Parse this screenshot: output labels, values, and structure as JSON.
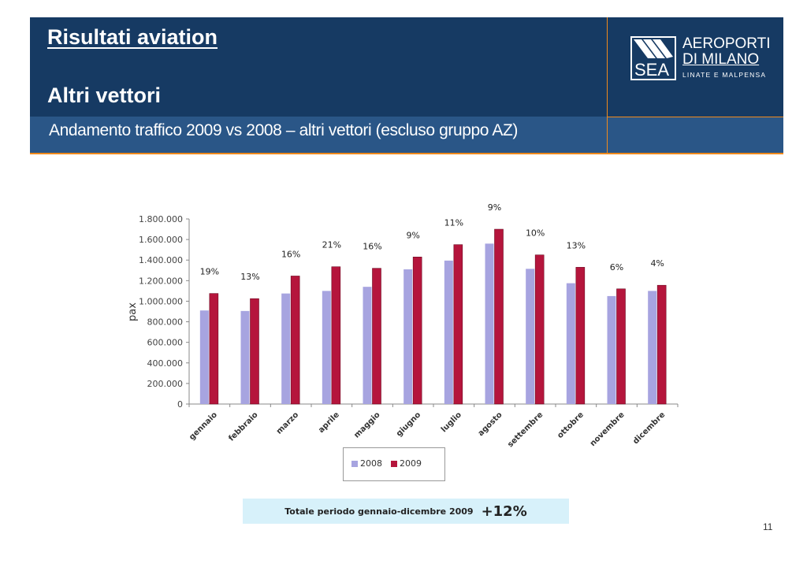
{
  "header": {
    "title": "Risultati aviation",
    "subtitle": "Altri vettori",
    "band_text": "Andamento traffico 2009 vs 2008 – altri vettori (escluso gruppo AZ)"
  },
  "logo": {
    "mark_text": "SEA",
    "brand_line1": "AEROPORTI",
    "brand_line2": "DI MILANO",
    "tagline": "LINATE E MALPENSA"
  },
  "chart_data": {
    "type": "bar",
    "ylabel": "pax",
    "xlabel": "",
    "ylim": [
      0,
      1800000
    ],
    "ytick_step": 200000,
    "ytick_labels": [
      "0",
      "200.000",
      "400.000",
      "600.000",
      "800.000",
      "1.000.000",
      "1.200.000",
      "1.400.000",
      "1.600.000",
      "1.800.000"
    ],
    "categories": [
      "gennaio",
      "febbraio",
      "marzo",
      "aprile",
      "maggio",
      "giugno",
      "luglio",
      "agosto",
      "settembre",
      "ottobre",
      "novembre",
      "dicembre"
    ],
    "series": [
      {
        "name": "2008",
        "color": "#a7a4e0",
        "values": [
          910000,
          905000,
          1075000,
          1100000,
          1140000,
          1310000,
          1395000,
          1560000,
          1315000,
          1175000,
          1050000,
          1100000
        ]
      },
      {
        "name": "2009",
        "color": "#b5153c",
        "values": [
          1075000,
          1025000,
          1245000,
          1335000,
          1320000,
          1430000,
          1550000,
          1700000,
          1450000,
          1330000,
          1120000,
          1155000
        ]
      }
    ],
    "growth_labels": [
      "19%",
      "13%",
      "16%",
      "21%",
      "16%",
      "9%",
      "11%",
      "9%",
      "10%",
      "13%",
      "6%",
      "4%"
    ],
    "legend_position": "bottom",
    "grid": false
  },
  "total": {
    "label": "Totale periodo gennaio-dicembre 2009",
    "value": "+12%"
  },
  "page_number": "11"
}
